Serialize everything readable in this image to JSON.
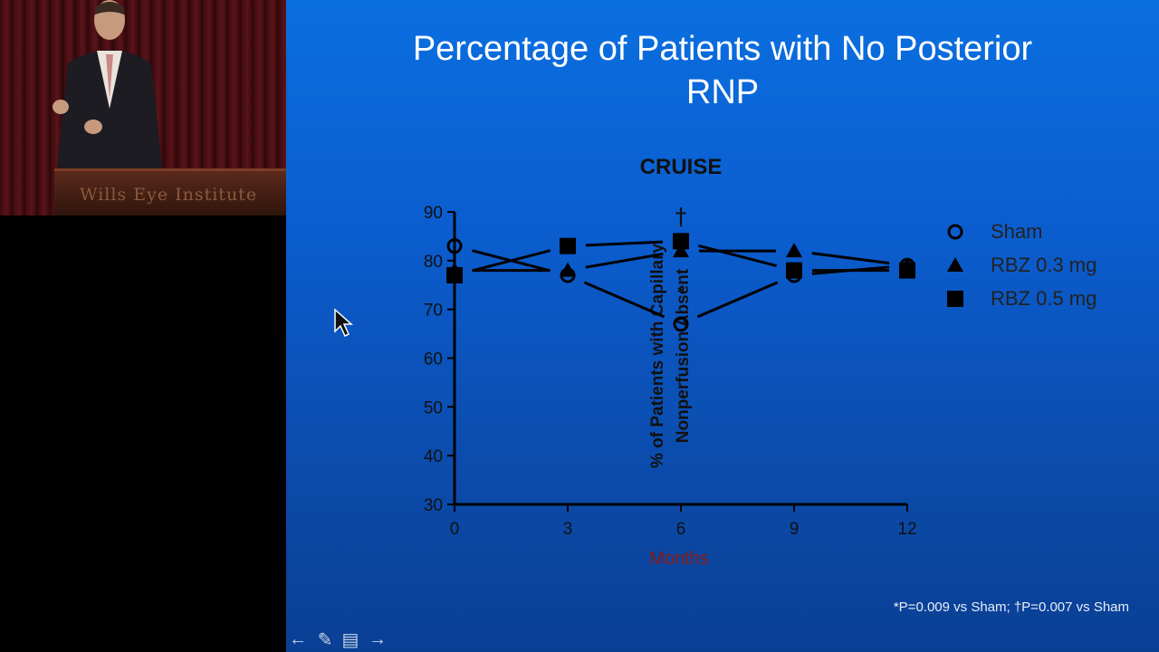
{
  "video": {
    "podium_text": "Wills Eye Institute"
  },
  "slide": {
    "title_line1": "Percentage of Patients with No Posterior",
    "title_line2": "RNP",
    "footnote": "*P=0.009 vs Sham; †P=0.007 vs Sham"
  },
  "chart_data": {
    "type": "line",
    "title": "CRUISE",
    "xlabel": "Months",
    "ylabel_line1": "% of Patients with Capillary",
    "ylabel_line2": "Nonperfusion Absent",
    "x": [
      0,
      3,
      6,
      9,
      12
    ],
    "x_ticks": [
      "0",
      "3",
      "6",
      "9",
      "12"
    ],
    "y_ticks": [
      "30",
      "40",
      "50",
      "60",
      "70",
      "80",
      "90"
    ],
    "ylim": [
      30,
      90
    ],
    "xlim": [
      0,
      12
    ],
    "grid": false,
    "legend_position": "right",
    "series": [
      {
        "name": "Sham",
        "marker": "circle",
        "values": [
          83,
          77,
          67,
          77,
          79
        ]
      },
      {
        "name": "RBZ 0.3 mg",
        "marker": "triangle",
        "values": [
          78,
          78,
          82,
          82,
          79
        ]
      },
      {
        "name": "RBZ 0.5 mg",
        "marker": "square",
        "values": [
          77,
          83,
          84,
          78,
          78
        ]
      }
    ],
    "annotations": [
      {
        "text": "†",
        "x": 6,
        "y": 90
      },
      {
        "text": "*",
        "x": 6,
        "y": 75
      }
    ],
    "colors": {
      "text": "#111111",
      "xlabel": "#8a1a10",
      "marks": "#000000"
    }
  },
  "controls": {
    "icons": [
      "arrow-left-icon",
      "pen-icon",
      "menu-icon",
      "arrow-right-icon"
    ]
  }
}
